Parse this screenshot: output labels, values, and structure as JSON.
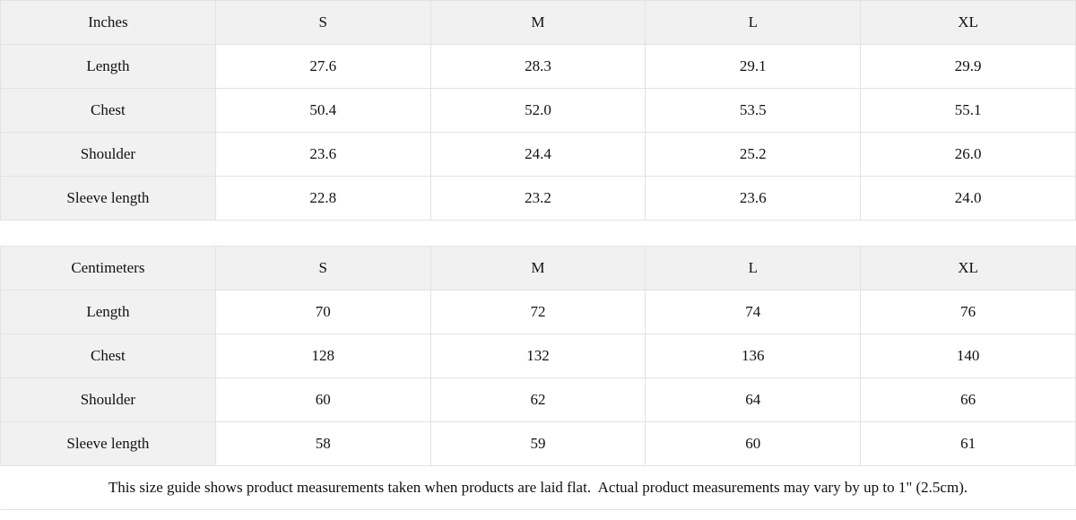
{
  "colors": {
    "header_cell_bg": "#f1f1f2",
    "border": "#e2e2e2",
    "text": "#111111",
    "page_bg": "#ffffff"
  },
  "inches_table": {
    "unit_label": "Inches",
    "size_headers": [
      "S",
      "M",
      "L",
      "XL"
    ],
    "rows": [
      {
        "label": "Length",
        "values": [
          "27.6",
          "28.3",
          "29.1",
          "29.9"
        ]
      },
      {
        "label": "Chest",
        "values": [
          "50.4",
          "52.0",
          "53.5",
          "55.1"
        ]
      },
      {
        "label": "Shoulder",
        "values": [
          "23.6",
          "24.4",
          "25.2",
          "26.0"
        ]
      },
      {
        "label": "Sleeve length",
        "values": [
          "22.8",
          "23.2",
          "23.6",
          "24.0"
        ]
      }
    ]
  },
  "centimeters_table": {
    "unit_label": "Centimeters",
    "size_headers": [
      "S",
      "M",
      "L",
      "XL"
    ],
    "rows": [
      {
        "label": "Length",
        "values": [
          "70",
          "72",
          "74",
          "76"
        ]
      },
      {
        "label": "Chest",
        "values": [
          "128",
          "132",
          "136",
          "140"
        ]
      },
      {
        "label": "Shoulder",
        "values": [
          "60",
          "62",
          "64",
          "66"
        ]
      },
      {
        "label": "Sleeve length",
        "values": [
          "58",
          "59",
          "60",
          "61"
        ]
      }
    ]
  },
  "footer": {
    "note": "This size guide shows product measurements taken when products are laid flat.  Actual product measurements may vary by up to 1\" (2.5cm)."
  }
}
